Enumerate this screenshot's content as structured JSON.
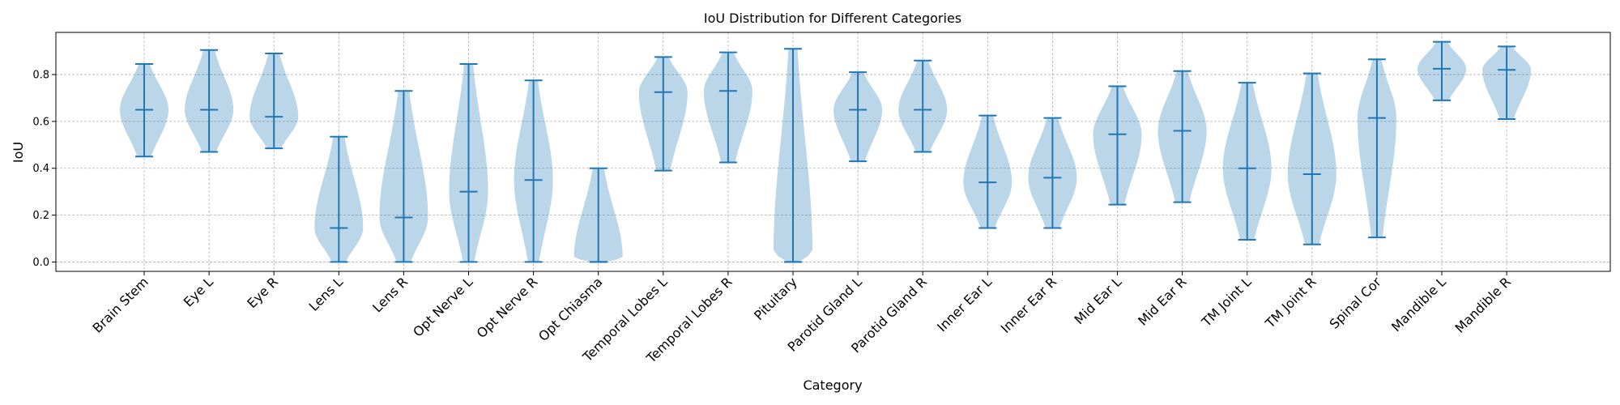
{
  "chart_data": {
    "type": "violin",
    "title": "IoU Distribution for Different Categories",
    "xlabel": "Category",
    "ylabel": "IoU",
    "ylim": [
      -0.04,
      0.98
    ],
    "yticks": [
      "0.0",
      "0.2",
      "0.4",
      "0.6",
      "0.8"
    ],
    "grid": true,
    "color": "#1f77b4",
    "categories": [
      "Brain Stem",
      "Eye L",
      "Eye R",
      "Lens L",
      "Lens R",
      "Opt Nerve L",
      "Opt Nerve R",
      "Opt Chiasma",
      "Temporal Lobes L",
      "Temporal Lobes R",
      "Pituitary",
      "Parotid Gland L",
      "Parotid Gland R",
      "Inner Ear L",
      "Inner Ear R",
      "Mid Ear L",
      "Mid Ear R",
      "TM Joint L",
      "TM Joint R",
      "Spinal Cor",
      "Mandible L",
      "Mandible R"
    ],
    "stats": [
      {
        "min": 0.45,
        "median": 0.65,
        "max": 0.845
      },
      {
        "min": 0.47,
        "median": 0.65,
        "max": 0.905
      },
      {
        "min": 0.485,
        "median": 0.62,
        "max": 0.89
      },
      {
        "min": 0.0,
        "median": 0.145,
        "max": 0.535
      },
      {
        "min": 0.0,
        "median": 0.19,
        "max": 0.73
      },
      {
        "min": 0.0,
        "median": 0.3,
        "max": 0.845
      },
      {
        "min": 0.0,
        "median": 0.35,
        "max": 0.775
      },
      {
        "min": 0.0,
        "median": 0.0,
        "max": 0.4
      },
      {
        "min": 0.39,
        "median": 0.725,
        "max": 0.875
      },
      {
        "min": 0.425,
        "median": 0.73,
        "max": 0.895
      },
      {
        "min": 0.0,
        "median": 0.0,
        "max": 0.91
      },
      {
        "min": 0.43,
        "median": 0.65,
        "max": 0.81
      },
      {
        "min": 0.47,
        "median": 0.65,
        "max": 0.86
      },
      {
        "min": 0.145,
        "median": 0.34,
        "max": 0.625
      },
      {
        "min": 0.145,
        "median": 0.36,
        "max": 0.615
      },
      {
        "min": 0.245,
        "median": 0.545,
        "max": 0.75
      },
      {
        "min": 0.255,
        "median": 0.56,
        "max": 0.815
      },
      {
        "min": 0.095,
        "median": 0.4,
        "max": 0.765
      },
      {
        "min": 0.075,
        "median": 0.375,
        "max": 0.805
      },
      {
        "min": 0.105,
        "median": 0.615,
        "max": 0.865
      },
      {
        "min": 0.69,
        "median": 0.825,
        "max": 0.94
      },
      {
        "min": 0.61,
        "median": 0.82,
        "max": 0.92
      }
    ]
  }
}
